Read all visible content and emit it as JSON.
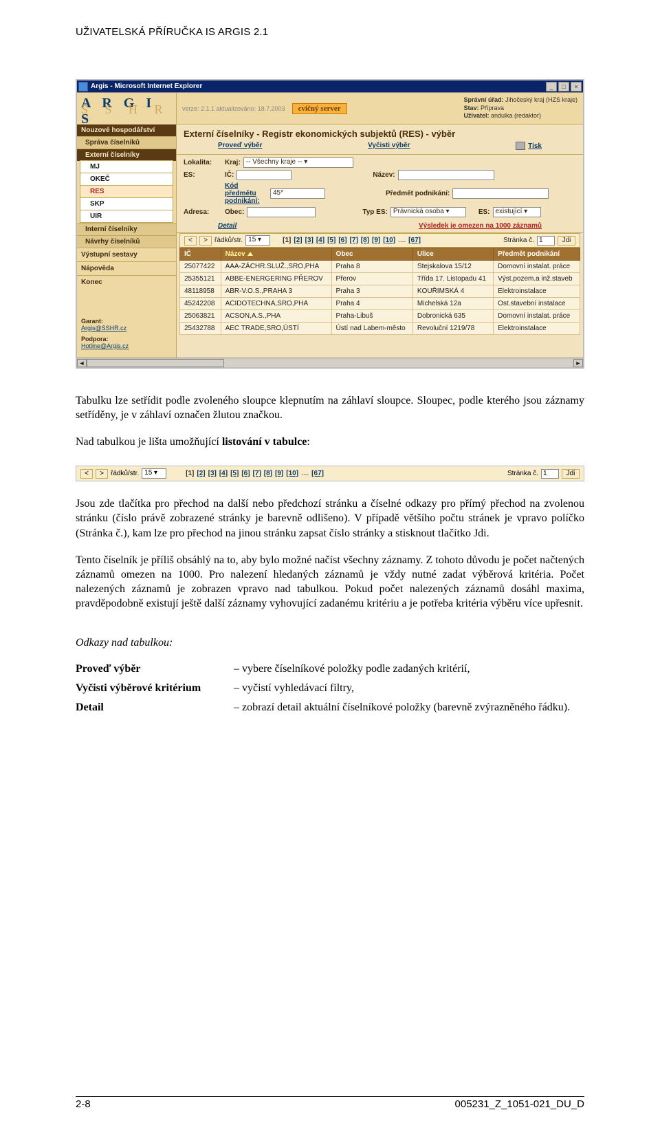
{
  "header": "UŽIVATELSKÁ PŘÍRUČKA IS ARGIS 2.1",
  "browser": {
    "title": "Argis - Microsoft Internet Explorer"
  },
  "app": {
    "logo": "A R G I S",
    "sublogo": "S S H R",
    "version": "verze: 2.1.1 aktualizováno: 18.7.2003",
    "cvicny": "cvičný server",
    "top": {
      "urad_label": "Správní úřad:",
      "urad": "Jihočeský kraj (HZS kraje)",
      "stav_label": "Stav:",
      "stav": "Příprava",
      "uzivatel_label": "Uživatel:",
      "uzivatel": "andulka (redaktor)"
    },
    "sidebar": {
      "g1": "Nouzové hospodářství",
      "s1": "Správa číselníků",
      "s2": "Externí číselníky",
      "items": [
        "MJ",
        "OKEČ",
        "RES",
        "SKP",
        "UIR"
      ],
      "s3": "Interní číselníky",
      "s4": "Návrhy číselníků",
      "p1": "Výstupní sestavy",
      "p2": "Nápověda",
      "p3": "Konec",
      "garant_l": "Garant:",
      "garant": "Argis@SSHR.cz",
      "podpora_l": "Podpora:",
      "podpora": "Hotline@Argis.cz"
    },
    "main": {
      "title": "Externí číselníky - Registr ekonomických subjektů (RES) - výběr",
      "links": {
        "proved": "Proveď výběr",
        "vycisti": "Vyčisti výběr",
        "tisk": "Tisk"
      },
      "form": {
        "lokalita": "Lokalita:",
        "kraj_l": "Kraj:",
        "kraj": "-- Všechny kraje --",
        "es_l": "ES:",
        "ic_l": "IČ:",
        "nazev_l": "Název:",
        "kod_l": "Kód předmětu podnikání:",
        "kod": "45*",
        "predmet_l": "Předmět podnikání:",
        "adresa_l": "Adresa:",
        "obec_l": "Obec:",
        "types_l": "Typ ES:",
        "types": "Právnická osoba",
        "es2_l": "ES:",
        "es2": "existující"
      },
      "detail": "Detail",
      "warning": "Výsledek je omezen na 1000 záznamů",
      "pager": {
        "rows_l": "řádků/str.",
        "rows": "15",
        "pages": [
          "[1]",
          "[2]",
          "[3]",
          "[4]",
          "[5]",
          "[6]",
          "[7]",
          "[8]",
          "[9]",
          "[10]"
        ],
        "dots": "....",
        "last": "[67]",
        "stranka_l": "Stránka č.",
        "stranka": "1",
        "jdi": "Jdi"
      },
      "table": {
        "headers": [
          "IČ",
          "Název",
          "Obec",
          "Ulice",
          "Předmět podnikání"
        ],
        "rows": [
          [
            "25077422",
            "AAA-ZÁCHR.SLUŽ.,SRO,PHA",
            "Praha 8",
            "Stejskalova 15/12",
            "Domovní instalat. práce"
          ],
          [
            "25355121",
            "ABBE-ENERGERING PŘEROV",
            "Přerov",
            "Třída 17. Listopadu 41",
            "Výst.pozem.a inž.staveb"
          ],
          [
            "48118958",
            "ABR-V.O.S.,PRAHA 3",
            "Praha 3",
            "KOUŘIMSKÁ 4",
            "Elektroinstalace"
          ],
          [
            "45242208",
            "ACIDOTECHNA,SRO,PHA",
            "Praha 4",
            "Michelská 12a",
            "Ost.stavební instalace"
          ],
          [
            "25063821",
            "ACSON,A.S.,PHA",
            "Praha-Libuš",
            "Dobronická 635",
            "Domovní instalat. práce"
          ],
          [
            "25432788",
            "AEC TRADE,SRO,ÚSTÍ",
            "Ústí nad Labem-město",
            "Revoluční 1219/78",
            "Elektroinstalace"
          ]
        ]
      }
    }
  },
  "text": {
    "p1a": "Tabulku lze setřídit podle zvoleného sloupce klepnutím na záhlaví sloupce. Sloupec, podle kterého jsou záznamy setříděny, je v záhlaví označen žlutou značkou.",
    "p2a": "Nad tabulkou je lišta umožňující ",
    "p2b": "listování v tabulce",
    "p2c": ":",
    "p3": "Jsou zde tlačítka pro přechod na další nebo předchozí stránku a číselné odkazy pro přímý přechod na zvolenou stránku (číslo právě zobrazené stránky je barevně odlišeno). V případě většího počtu stránek je vpravo políčko (Stránka č.), kam lze pro přechod na jinou stránku zapsat číslo stránky a stisknout tlačítko Jdi.",
    "p4": "Tento číselník je příliš obsáhlý na to, aby bylo možné načíst všechny záznamy. Z tohoto důvodu je počet načtených záznamů omezen na 1000. Pro nalezení hledaných záznamů je vždy nutné zadat výběrová kritéria. Počet nalezených záznamů je zobrazen vpravo nad tabulkou. Pokud počet nalezených záznamů dosáhl maxima, pravděpodobně existují ještě další záznamy vyhovující zadanému kritériu a je potřeba kritéria výběru více upřesnit."
  },
  "links": {
    "title": "Odkazy nad tabulkou:",
    "r1t": "Proveď výběr",
    "r1d": "– vybere číselníkové položky podle zadaných kritérií,",
    "r2t": "Vyčisti výběrové kritérium",
    "r2d": "– vyčistí vyhledávací filtry,",
    "r3t": "Detail",
    "r3d": "– zobrazí detail aktuální číselníkové položky (barevně zvýrazněného řádku)."
  },
  "footer": {
    "left": "2-8",
    "right": "005231_Z_1051-021_DU_D"
  }
}
